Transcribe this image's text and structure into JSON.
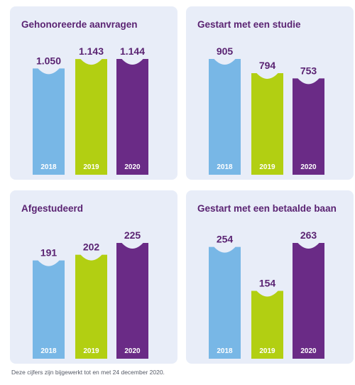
{
  "colors": {
    "2018": "#78b7e6",
    "2019": "#b2cf12",
    "2020": "#6a2b86",
    "value_text": "#5a2372",
    "year_text": "#ffffff"
  },
  "chart_data": [
    {
      "type": "bar",
      "title": "Gehonoreerde aanvragen",
      "categories": [
        "2018",
        "2019",
        "2020"
      ],
      "values": [
        1050,
        1143,
        1144
      ],
      "value_labels": [
        "1.050",
        "1.143",
        "1.144"
      ]
    },
    {
      "type": "bar",
      "title": "Gestart met een studie",
      "categories": [
        "2018",
        "2019",
        "2020"
      ],
      "values": [
        905,
        794,
        753
      ],
      "value_labels": [
        "905",
        "794",
        "753"
      ]
    },
    {
      "type": "bar",
      "title": "Afgestudeerd",
      "categories": [
        "2018",
        "2019",
        "2020"
      ],
      "values": [
        191,
        202,
        225
      ],
      "value_labels": [
        "191",
        "202",
        "225"
      ]
    },
    {
      "type": "bar",
      "title": "Gestart met een betaalde baan",
      "categories": [
        "2018",
        "2019",
        "2020"
      ],
      "values": [
        254,
        154,
        263
      ],
      "value_labels": [
        "254",
        "154",
        "263"
      ]
    }
  ],
  "footnote": "Deze cijfers zijn bijgewerkt tot en met 24 december 2020."
}
